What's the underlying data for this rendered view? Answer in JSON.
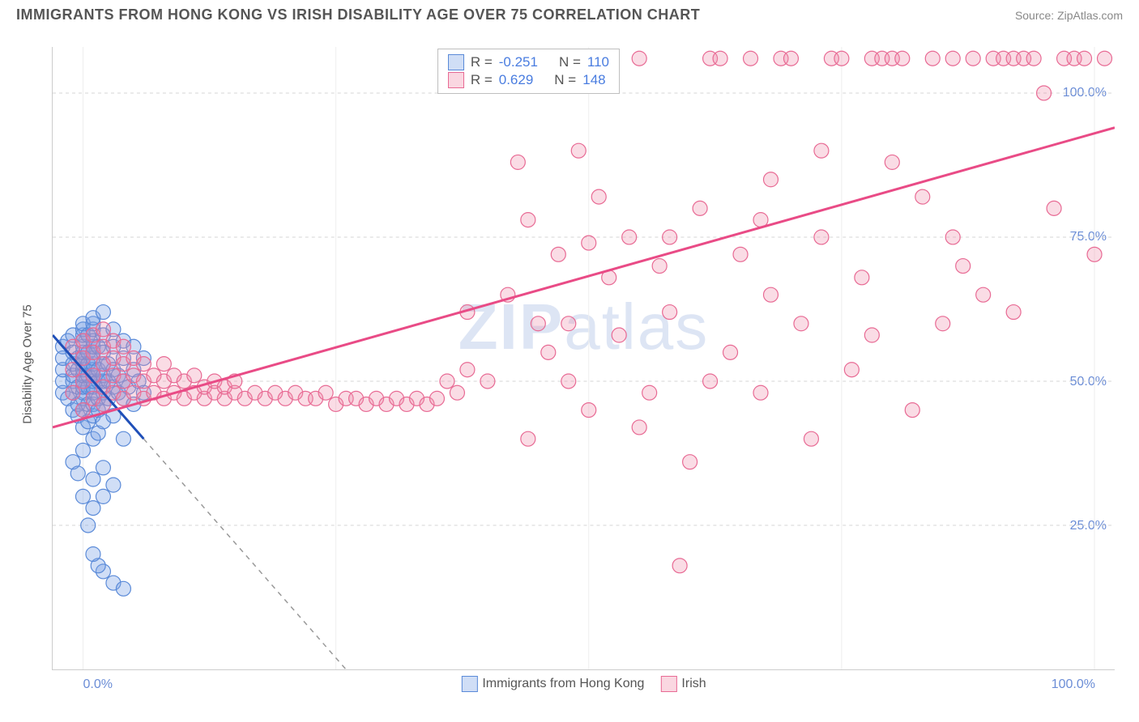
{
  "header": {
    "title": "IMMIGRANTS FROM HONG KONG VS IRISH DISABILITY AGE OVER 75 CORRELATION CHART",
    "source_label": "Source: ",
    "source_value": "ZipAtlas.com"
  },
  "chart": {
    "type": "scatter",
    "y_axis_title": "Disability Age Over 75",
    "x_axis_title": "",
    "background_color": "#ffffff",
    "grid_color": "#d5d5d5",
    "axis_color": "#cccccc",
    "tick_label_color": "#6b8dd6",
    "tick_fontsize": 16,
    "title_fontsize": 18,
    "title_color": "#555555",
    "source_color": "#888888",
    "xlim": [
      -3,
      102
    ],
    "ylim": [
      0,
      108
    ],
    "x_ticks": [
      0,
      25,
      50,
      75,
      100
    ],
    "x_tick_labels": [
      "0.0%",
      "",
      "",
      "",
      "100.0%"
    ],
    "y_ticks": [
      25,
      50,
      75,
      100
    ],
    "y_tick_labels": [
      "25.0%",
      "50.0%",
      "75.0%",
      "100.0%"
    ],
    "watermark": {
      "text_bold": "ZIP",
      "text_light": "atlas",
      "color": "rgba(120,150,210,0.25)",
      "fontsize": 80
    },
    "legend_top": {
      "rows": [
        {
          "swatch_fill": "rgba(120,160,230,0.35)",
          "swatch_border": "#5a8ad8",
          "r_label": "R =",
          "r_value": "-0.251",
          "n_label": "N =",
          "n_value": "110"
        },
        {
          "swatch_fill": "rgba(240,140,170,0.35)",
          "swatch_border": "#e86a94",
          "r_label": "R =",
          "r_value": "0.629",
          "n_label": "N =",
          "n_value": "148"
        }
      ]
    },
    "legend_bottom": {
      "items": [
        {
          "swatch_fill": "rgba(120,160,230,0.35)",
          "swatch_border": "#5a8ad8",
          "label": "Immigrants from Hong Kong"
        },
        {
          "swatch_fill": "rgba(240,140,170,0.35)",
          "swatch_border": "#e86a94",
          "label": "Irish"
        }
      ]
    },
    "series": [
      {
        "name": "Immigrants from Hong Kong",
        "marker_fill": "rgba(120,160,230,0.35)",
        "marker_stroke": "#5a8ad8",
        "marker_radius": 9,
        "trend_color": "#1f4fb8",
        "trend_width": 3,
        "trend_dash_extension_color": "#999999",
        "trend_line": {
          "x1": -3,
          "y1": 58,
          "x2": 6,
          "y2": 40
        },
        "trend_dash": {
          "x1": 6,
          "y1": 40,
          "x2": 26,
          "y2": 0
        },
        "points": [
          [
            -2,
            48
          ],
          [
            -2,
            50
          ],
          [
            -2,
            52
          ],
          [
            -2,
            54
          ],
          [
            -2,
            56
          ],
          [
            -1.5,
            47
          ],
          [
            -1.5,
            57
          ],
          [
            -1,
            36
          ],
          [
            -1,
            45
          ],
          [
            -1,
            48
          ],
          [
            -1,
            50
          ],
          [
            -1,
            51
          ],
          [
            -1,
            53
          ],
          [
            -1,
            55
          ],
          [
            -1,
            58
          ],
          [
            -0.5,
            44
          ],
          [
            -0.5,
            46
          ],
          [
            -0.5,
            49
          ],
          [
            -0.5,
            52
          ],
          [
            -0.5,
            54
          ],
          [
            0,
            38
          ],
          [
            0,
            42
          ],
          [
            0,
            45
          ],
          [
            0,
            47
          ],
          [
            0,
            48
          ],
          [
            0,
            49
          ],
          [
            0,
            50
          ],
          [
            0,
            51
          ],
          [
            0,
            52
          ],
          [
            0,
            53
          ],
          [
            0,
            54
          ],
          [
            0,
            55
          ],
          [
            0,
            56
          ],
          [
            0,
            57
          ],
          [
            0,
            58
          ],
          [
            0,
            59
          ],
          [
            0,
            60
          ],
          [
            0.5,
            43
          ],
          [
            0.5,
            46
          ],
          [
            0.5,
            49
          ],
          [
            0.5,
            51
          ],
          [
            0.5,
            53
          ],
          [
            0.5,
            55
          ],
          [
            0.5,
            58
          ],
          [
            1,
            28
          ],
          [
            1,
            33
          ],
          [
            1,
            40
          ],
          [
            1,
            44
          ],
          [
            1,
            46
          ],
          [
            1,
            48
          ],
          [
            1,
            49
          ],
          [
            1,
            50
          ],
          [
            1,
            51
          ],
          [
            1,
            52
          ],
          [
            1,
            53
          ],
          [
            1,
            54
          ],
          [
            1,
            55
          ],
          [
            1,
            56
          ],
          [
            1,
            57
          ],
          [
            1,
            59
          ],
          [
            1,
            60
          ],
          [
            1,
            61
          ],
          [
            1.5,
            41
          ],
          [
            1.5,
            45
          ],
          [
            1.5,
            47
          ],
          [
            1.5,
            50
          ],
          [
            1.5,
            52
          ],
          [
            1.5,
            56
          ],
          [
            2,
            30
          ],
          [
            2,
            35
          ],
          [
            2,
            43
          ],
          [
            2,
            46
          ],
          [
            2,
            48
          ],
          [
            2,
            50
          ],
          [
            2,
            51
          ],
          [
            2,
            53
          ],
          [
            2,
            55
          ],
          [
            2,
            58
          ],
          [
            2,
            62
          ],
          [
            2.5,
            47
          ],
          [
            2.5,
            50
          ],
          [
            2.5,
            53
          ],
          [
            3,
            15
          ],
          [
            3,
            32
          ],
          [
            3,
            44
          ],
          [
            3,
            49
          ],
          [
            3,
            52
          ],
          [
            3,
            56
          ],
          [
            3,
            59
          ],
          [
            3.5,
            48
          ],
          [
            3.5,
            51
          ],
          [
            4,
            14
          ],
          [
            4,
            40
          ],
          [
            4,
            47
          ],
          [
            4,
            50
          ],
          [
            4,
            54
          ],
          [
            4,
            57
          ],
          [
            4.5,
            49
          ],
          [
            5,
            46
          ],
          [
            5,
            52
          ],
          [
            5,
            56
          ],
          [
            5.5,
            50
          ],
          [
            6,
            48
          ],
          [
            6,
            54
          ],
          [
            2,
            17
          ],
          [
            1.5,
            18
          ],
          [
            1,
            20
          ],
          [
            0.5,
            25
          ],
          [
            0,
            30
          ],
          [
            -0.5,
            34
          ]
        ]
      },
      {
        "name": "Irish",
        "marker_fill": "rgba(240,140,170,0.30)",
        "marker_stroke": "#e86a94",
        "marker_radius": 9,
        "trend_color": "#e94b86",
        "trend_width": 3,
        "trend_line": {
          "x1": -3,
          "y1": 42,
          "x2": 102,
          "y2": 94
        },
        "points": [
          [
            -1,
            48
          ],
          [
            -1,
            52
          ],
          [
            -1,
            56
          ],
          [
            0,
            45
          ],
          [
            0,
            50
          ],
          [
            0,
            54
          ],
          [
            0,
            57
          ],
          [
            1,
            47
          ],
          [
            1,
            51
          ],
          [
            1,
            55
          ],
          [
            1,
            58
          ],
          [
            2,
            46
          ],
          [
            2,
            49
          ],
          [
            2,
            53
          ],
          [
            2,
            56
          ],
          [
            2,
            59
          ],
          [
            3,
            48
          ],
          [
            3,
            51
          ],
          [
            3,
            54
          ],
          [
            3,
            57
          ],
          [
            4,
            47
          ],
          [
            4,
            50
          ],
          [
            4,
            53
          ],
          [
            4,
            56
          ],
          [
            5,
            48
          ],
          [
            5,
            51
          ],
          [
            5,
            54
          ],
          [
            6,
            47
          ],
          [
            6,
            50
          ],
          [
            6,
            53
          ],
          [
            7,
            48
          ],
          [
            7,
            51
          ],
          [
            8,
            47
          ],
          [
            8,
            50
          ],
          [
            8,
            53
          ],
          [
            9,
            48
          ],
          [
            9,
            51
          ],
          [
            10,
            47
          ],
          [
            10,
            50
          ],
          [
            11,
            48
          ],
          [
            11,
            51
          ],
          [
            12,
            47
          ],
          [
            12,
            49
          ],
          [
            13,
            48
          ],
          [
            13,
            50
          ],
          [
            14,
            47
          ],
          [
            14,
            49
          ],
          [
            15,
            48
          ],
          [
            15,
            50
          ],
          [
            16,
            47
          ],
          [
            17,
            48
          ],
          [
            18,
            47
          ],
          [
            19,
            48
          ],
          [
            20,
            47
          ],
          [
            21,
            48
          ],
          [
            22,
            47
          ],
          [
            23,
            47
          ],
          [
            24,
            48
          ],
          [
            25,
            46
          ],
          [
            26,
            47
          ],
          [
            27,
            47
          ],
          [
            28,
            46
          ],
          [
            29,
            47
          ],
          [
            30,
            46
          ],
          [
            31,
            47
          ],
          [
            32,
            46
          ],
          [
            33,
            47
          ],
          [
            34,
            46
          ],
          [
            35,
            47
          ],
          [
            36,
            50
          ],
          [
            37,
            48
          ],
          [
            38,
            52
          ],
          [
            40,
            50
          ],
          [
            42,
            65
          ],
          [
            43,
            88
          ],
          [
            44,
            78
          ],
          [
            45,
            60
          ],
          [
            46,
            55
          ],
          [
            47,
            72
          ],
          [
            48,
            106
          ],
          [
            48,
            50
          ],
          [
            49,
            90
          ],
          [
            50,
            74
          ],
          [
            51,
            82
          ],
          [
            52,
            68
          ],
          [
            53,
            58
          ],
          [
            54,
            75
          ],
          [
            55,
            106
          ],
          [
            56,
            48
          ],
          [
            57,
            70
          ],
          [
            58,
            62
          ],
          [
            59,
            18
          ],
          [
            60,
            36
          ],
          [
            61,
            80
          ],
          [
            62,
            106
          ],
          [
            63,
            106
          ],
          [
            64,
            55
          ],
          [
            65,
            72
          ],
          [
            66,
            106
          ],
          [
            67,
            48
          ],
          [
            68,
            85
          ],
          [
            69,
            106
          ],
          [
            70,
            106
          ],
          [
            71,
            60
          ],
          [
            72,
            40
          ],
          [
            73,
            75
          ],
          [
            74,
            106
          ],
          [
            75,
            106
          ],
          [
            76,
            52
          ],
          [
            77,
            68
          ],
          [
            78,
            106
          ],
          [
            79,
            106
          ],
          [
            80,
            106
          ],
          [
            81,
            106
          ],
          [
            82,
            45
          ],
          [
            83,
            82
          ],
          [
            84,
            106
          ],
          [
            85,
            60
          ],
          [
            86,
            106
          ],
          [
            87,
            70
          ],
          [
            88,
            106
          ],
          [
            89,
            65
          ],
          [
            90,
            106
          ],
          [
            91,
            106
          ],
          [
            92,
            106
          ],
          [
            93,
            106
          ],
          [
            94,
            106
          ],
          [
            95,
            100
          ],
          [
            96,
            80
          ],
          [
            97,
            106
          ],
          [
            98,
            106
          ],
          [
            99,
            106
          ],
          [
            100,
            72
          ],
          [
            101,
            106
          ],
          [
            44,
            40
          ],
          [
            50,
            45
          ],
          [
            55,
            42
          ],
          [
            62,
            50
          ],
          [
            67,
            78
          ],
          [
            73,
            90
          ],
          [
            80,
            88
          ],
          [
            86,
            75
          ],
          [
            92,
            62
          ],
          [
            38,
            62
          ],
          [
            48,
            60
          ],
          [
            58,
            75
          ],
          [
            68,
            65
          ],
          [
            78,
            58
          ]
        ]
      }
    ]
  }
}
